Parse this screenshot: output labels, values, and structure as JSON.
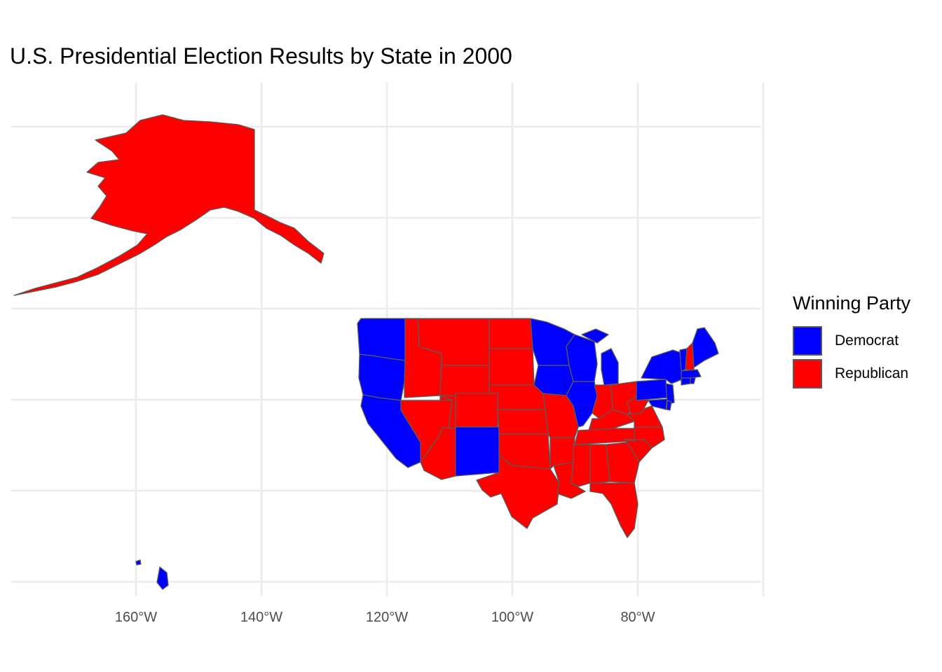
{
  "title": "U.S. Presidential Election Results by State in 2000",
  "colors": {
    "Democrat": "#0000ff",
    "Republican": "#ff0000",
    "border": "#5a5a5a",
    "grid": "#ebebeb"
  },
  "axis": {
    "x_ticks": [
      "160°W",
      "140°W",
      "120°W",
      "100°W",
      "80°W"
    ],
    "x_tick_values": [
      -160,
      -140,
      -120,
      -100,
      -80
    ]
  },
  "legend": {
    "title": "Winning Party",
    "items": [
      {
        "label": "Democrat",
        "color": "#0000ff"
      },
      {
        "label": "Republican",
        "color": "#ff0000"
      }
    ]
  },
  "regions": [
    {
      "name": "Alaska",
      "party": "Republican"
    },
    {
      "name": "Hawaii",
      "party": "Democrat"
    },
    {
      "name": "Washington",
      "party": "Democrat"
    },
    {
      "name": "Oregon",
      "party": "Democrat"
    },
    {
      "name": "California",
      "party": "Democrat"
    },
    {
      "name": "Nevada",
      "party": "Republican"
    },
    {
      "name": "Idaho",
      "party": "Republican"
    },
    {
      "name": "Montana",
      "party": "Republican"
    },
    {
      "name": "Wyoming",
      "party": "Republican"
    },
    {
      "name": "Utah",
      "party": "Republican"
    },
    {
      "name": "Arizona",
      "party": "Republican"
    },
    {
      "name": "Colorado",
      "party": "Republican"
    },
    {
      "name": "New Mexico",
      "party": "Democrat"
    },
    {
      "name": "North Dakota",
      "party": "Republican"
    },
    {
      "name": "South Dakota",
      "party": "Republican"
    },
    {
      "name": "Nebraska",
      "party": "Republican"
    },
    {
      "name": "Kansas",
      "party": "Republican"
    },
    {
      "name": "Oklahoma",
      "party": "Republican"
    },
    {
      "name": "Texas",
      "party": "Republican"
    },
    {
      "name": "Minnesota",
      "party": "Democrat"
    },
    {
      "name": "Iowa",
      "party": "Democrat"
    },
    {
      "name": "Missouri",
      "party": "Republican"
    },
    {
      "name": "Arkansas",
      "party": "Republican"
    },
    {
      "name": "Louisiana",
      "party": "Republican"
    },
    {
      "name": "Wisconsin",
      "party": "Democrat"
    },
    {
      "name": "Illinois",
      "party": "Democrat"
    },
    {
      "name": "Michigan",
      "party": "Democrat"
    },
    {
      "name": "Indiana",
      "party": "Republican"
    },
    {
      "name": "Ohio",
      "party": "Republican"
    },
    {
      "name": "Kentucky",
      "party": "Republican"
    },
    {
      "name": "Tennessee",
      "party": "Republican"
    },
    {
      "name": "Mississippi",
      "party": "Republican"
    },
    {
      "name": "Alabama",
      "party": "Republican"
    },
    {
      "name": "Georgia",
      "party": "Republican"
    },
    {
      "name": "Florida",
      "party": "Republican"
    },
    {
      "name": "South Carolina",
      "party": "Republican"
    },
    {
      "name": "North Carolina",
      "party": "Republican"
    },
    {
      "name": "Virginia",
      "party": "Republican"
    },
    {
      "name": "West Virginia",
      "party": "Republican"
    },
    {
      "name": "Pennsylvania",
      "party": "Democrat"
    },
    {
      "name": "New York",
      "party": "Democrat"
    },
    {
      "name": "New Jersey",
      "party": "Democrat"
    },
    {
      "name": "Maryland",
      "party": "Democrat"
    },
    {
      "name": "Delaware",
      "party": "Democrat"
    },
    {
      "name": "Connecticut",
      "party": "Democrat"
    },
    {
      "name": "Rhode Island",
      "party": "Democrat"
    },
    {
      "name": "Massachusetts",
      "party": "Democrat"
    },
    {
      "name": "Vermont",
      "party": "Democrat"
    },
    {
      "name": "New Hampshire",
      "party": "Republican"
    },
    {
      "name": "Maine",
      "party": "Democrat"
    }
  ]
}
